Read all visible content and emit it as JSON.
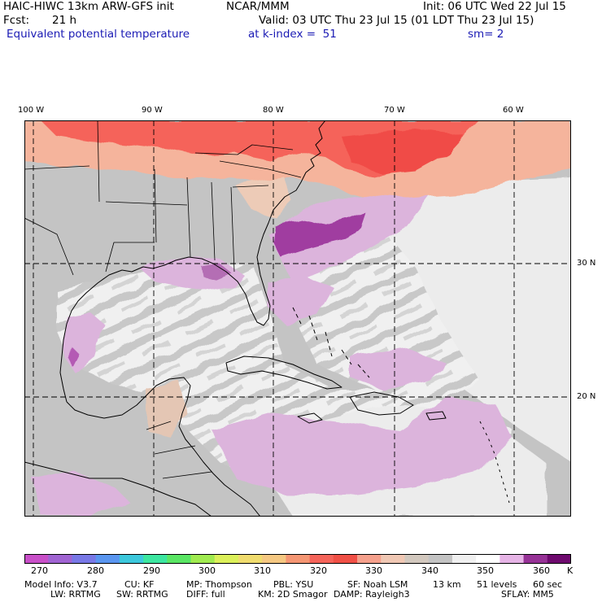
{
  "header": {
    "model_title": "HAIC-HIWC 13km ARW-GFS init",
    "center": "NCAR/MMM",
    "init": "Init: 06 UTC Wed 22 Jul 15",
    "fcst_label": "Fcst:",
    "fcst_value": "21 h",
    "valid": "Valid: 03 UTC Thu 23 Jul 15 (01 LDT Thu 23 Jul 15)",
    "field_name": "Equivalent potential temperature",
    "level": "at k-index =  51",
    "smoothing": "sm= 2"
  },
  "map": {
    "lon_labels": [
      "100 W",
      "90 W",
      "80 W",
      "70 W",
      "60 W"
    ],
    "lat_labels": [
      "30 N",
      "20 N"
    ],
    "colors": {
      "frame": "#000000",
      "grid": "#000000",
      "coast": "#000000"
    }
  },
  "colorbar": {
    "colors": [
      "#c84fc8",
      "#a064d2",
      "#7878e6",
      "#5a96f0",
      "#3cc8dc",
      "#3ce6a0",
      "#5ae664",
      "#a0eb50",
      "#dcf05a",
      "#f0dc6e",
      "#f5c882",
      "#f59673",
      "#f5645a",
      "#f05046",
      "#f5a08c",
      "#f0c8b4",
      "#d2c8be",
      "#c3c3c3",
      "#f0f0f0",
      "#ffffff",
      "#e6b4e6",
      "#963296",
      "#6e0a6e"
    ],
    "labels": [
      "270",
      "280",
      "290",
      "300",
      "310",
      "320",
      "330",
      "340",
      "350",
      "360"
    ],
    "unit": "K"
  },
  "model_info": {
    "line1": [
      "Model Info: V3.7",
      "CU: KF",
      "MP: Thompson",
      "PBL: YSU",
      "SF: Noah LSM",
      "13 km",
      "51 levels",
      "60 sec"
    ],
    "line2": [
      "LW: RRTMG",
      "SW: RRTMG",
      "DIFF: full",
      "KM: 2D Smagor",
      "DAMP: Rayleigh3",
      "SFLAY: MM5"
    ]
  }
}
